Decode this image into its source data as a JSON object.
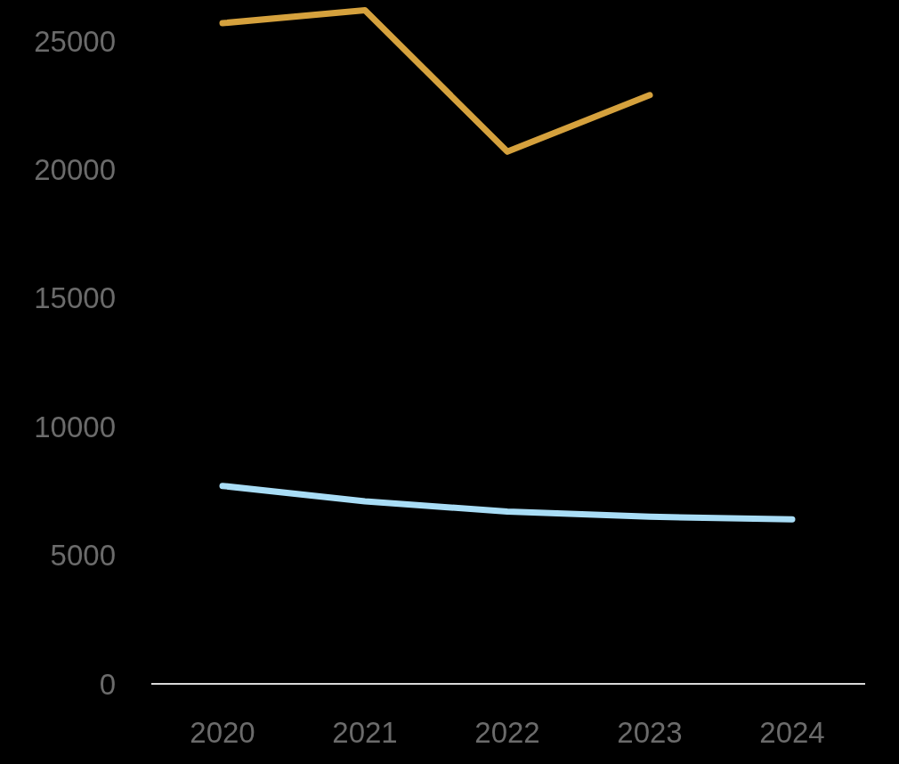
{
  "chart_data": {
    "type": "line",
    "categories": [
      "2020",
      "2021",
      "2022",
      "2023",
      "2024"
    ],
    "series": [
      {
        "color": "#d5a13d",
        "values": [
          25700,
          26200,
          20700,
          22900,
          null
        ]
      },
      {
        "color": "#a9ddf6",
        "values": [
          7700,
          7100,
          6700,
          6500,
          6400
        ]
      }
    ],
    "ylim": [
      0,
      26600
    ],
    "yticks": [
      0,
      5000,
      10000,
      15000,
      20000,
      25000
    ],
    "grid": false,
    "marker": "none",
    "line_style": "solid"
  }
}
